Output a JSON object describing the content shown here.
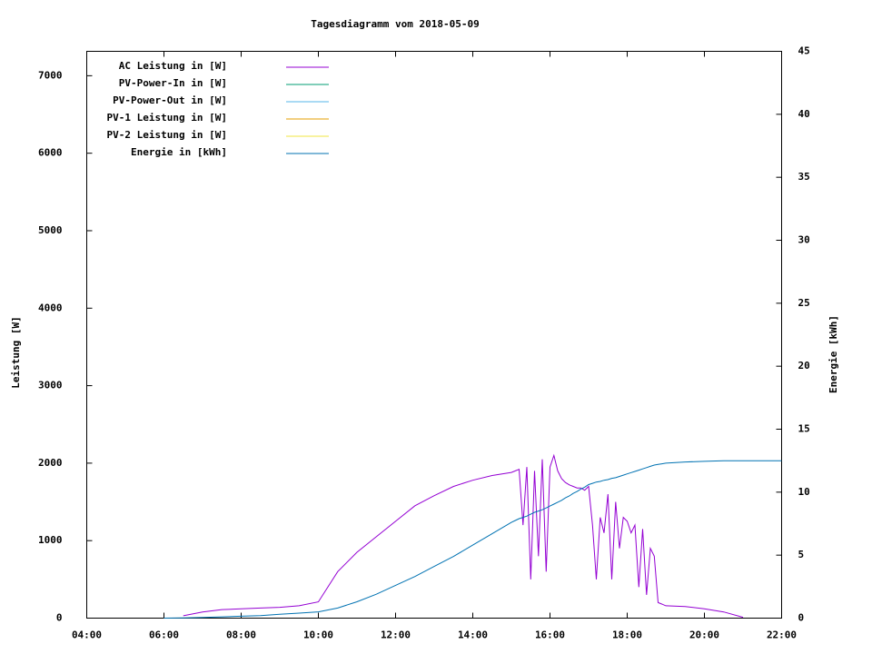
{
  "chart_data": {
    "type": "line",
    "title": "Tagesdiagramm vom 2018-05-09",
    "y_label": "Leistung [W]",
    "y2_label": "Energie [kWh]",
    "legend": "top-left",
    "grid": false,
    "x": [
      6.0,
      6.5,
      7.0,
      7.5,
      8.0,
      8.5,
      9.0,
      9.5,
      10.0,
      10.5,
      11.0,
      11.5,
      12.0,
      12.5,
      13.0,
      13.5,
      14.0,
      14.5,
      15.0,
      15.1,
      15.2,
      15.3,
      15.4,
      15.5,
      15.6,
      15.7,
      15.8,
      15.9,
      16.0,
      16.1,
      16.2,
      16.3,
      16.4,
      16.5,
      16.6,
      16.7,
      16.8,
      16.9,
      17.0,
      17.1,
      17.2,
      17.3,
      17.4,
      17.5,
      17.6,
      17.7,
      17.8,
      17.9,
      18.0,
      18.1,
      18.2,
      18.3,
      18.4,
      18.5,
      18.6,
      18.7,
      18.8,
      18.9,
      19.0,
      19.5,
      20.0,
      20.5,
      21.0,
      21.5,
      22.0
    ],
    "xlim": [
      4,
      22
    ],
    "xticks": [
      {
        "value": 4,
        "label": "04:00"
      },
      {
        "value": 6,
        "label": "06:00"
      },
      {
        "value": 8,
        "label": "08:00"
      },
      {
        "value": 10,
        "label": "10:00"
      },
      {
        "value": 12,
        "label": "12:00"
      },
      {
        "value": 14,
        "label": "14:00"
      },
      {
        "value": 16,
        "label": "16:00"
      },
      {
        "value": 18,
        "label": "18:00"
      },
      {
        "value": 20,
        "label": "20:00"
      },
      {
        "value": 22,
        "label": "22:00"
      }
    ],
    "ylim": [
      0,
      7315
    ],
    "yticks": [
      0,
      1000,
      2000,
      3000,
      4000,
      5000,
      6000,
      7000
    ],
    "y2lim": [
      0,
      45
    ],
    "y2ticks": [
      0,
      5,
      10,
      15,
      20,
      25,
      30,
      35,
      40,
      45
    ],
    "series": [
      {
        "name": "AC Leistung in [W]",
        "color": "#9400d3",
        "values": [
          null,
          30,
          80,
          110,
          120,
          130,
          140,
          160,
          210,
          600,
          850,
          1050,
          1250,
          1450,
          1580,
          1700,
          1780,
          1840,
          1880,
          1900,
          1920,
          1200,
          1950,
          500,
          1900,
          800,
          2050,
          600,
          1950,
          2100,
          1900,
          1800,
          1750,
          1720,
          1700,
          1680,
          1680,
          1650,
          1700,
          1200,
          500,
          1300,
          1100,
          1600,
          500,
          1500,
          900,
          1300,
          1250,
          1100,
          1200,
          400,
          1150,
          300,
          900,
          800,
          200,
          180,
          160,
          150,
          120,
          80,
          10,
          null,
          null
        ]
      },
      {
        "name": "PV-Power-In in [W]",
        "color": "#009e73",
        "values": [
          null,
          null,
          null,
          null,
          null,
          null,
          null,
          null,
          null,
          null,
          null,
          null,
          null,
          null,
          null,
          null,
          null,
          null,
          null,
          null,
          null,
          null,
          null,
          null,
          null,
          null,
          null,
          null,
          null,
          null,
          null,
          null,
          null,
          null,
          null,
          null,
          null,
          null,
          null,
          null,
          null,
          null,
          null,
          null,
          null,
          null,
          null,
          null,
          null,
          null,
          null,
          null,
          null,
          null,
          null,
          null,
          null,
          null,
          null,
          null,
          null,
          null,
          null,
          null,
          null
        ]
      },
      {
        "name": "PV-Power-Out in [W]",
        "color": "#56b4e9",
        "values": [
          null,
          null,
          null,
          null,
          null,
          null,
          null,
          null,
          null,
          null,
          null,
          null,
          null,
          null,
          null,
          null,
          null,
          null,
          null,
          null,
          null,
          null,
          null,
          null,
          null,
          null,
          null,
          null,
          null,
          null,
          null,
          null,
          null,
          null,
          null,
          null,
          null,
          null,
          null,
          null,
          null,
          null,
          null,
          null,
          null,
          null,
          null,
          null,
          null,
          null,
          null,
          null,
          null,
          null,
          null,
          null,
          null,
          null,
          null,
          null,
          null,
          null,
          null,
          null,
          null
        ]
      },
      {
        "name": "PV-1 Leistung in [W]",
        "color": "#e69f00",
        "values": [
          null,
          null,
          null,
          null,
          null,
          null,
          null,
          null,
          null,
          null,
          null,
          null,
          null,
          null,
          null,
          null,
          null,
          null,
          null,
          null,
          null,
          null,
          null,
          null,
          null,
          null,
          null,
          null,
          null,
          null,
          null,
          null,
          null,
          null,
          null,
          null,
          null,
          null,
          null,
          null,
          null,
          null,
          null,
          null,
          null,
          null,
          null,
          null,
          null,
          null,
          null,
          null,
          null,
          null,
          null,
          null,
          null,
          null,
          null,
          null,
          null,
          null,
          null,
          null,
          null
        ]
      },
      {
        "name": "PV-2 Leistung in [W]",
        "color": "#f0e442",
        "values": [
          null,
          null,
          null,
          null,
          null,
          null,
          null,
          null,
          null,
          null,
          null,
          null,
          null,
          null,
          null,
          null,
          null,
          null,
          null,
          null,
          null,
          null,
          null,
          null,
          null,
          null,
          null,
          null,
          null,
          null,
          null,
          null,
          null,
          null,
          null,
          null,
          null,
          null,
          null,
          null,
          null,
          null,
          null,
          null,
          null,
          null,
          null,
          null,
          null,
          null,
          null,
          null,
          null,
          null,
          null,
          null,
          null,
          null,
          null,
          null,
          null,
          null,
          null,
          null,
          null
        ]
      },
      {
        "name": "Energie in [kWh]",
        "color": "#0072b2",
        "axis": "y2",
        "values": [
          0,
          0.02,
          0.05,
          0.1,
          0.15,
          0.2,
          0.3,
          0.4,
          0.5,
          0.8,
          1.3,
          1.9,
          2.6,
          3.3,
          4.1,
          4.9,
          5.8,
          6.7,
          7.6,
          7.75,
          7.9,
          8.0,
          8.1,
          8.25,
          8.4,
          8.5,
          8.6,
          8.75,
          8.9,
          9.05,
          9.2,
          9.35,
          9.55,
          9.7,
          9.9,
          10.05,
          10.25,
          10.4,
          10.6,
          10.7,
          10.8,
          10.85,
          10.95,
          11.0,
          11.1,
          11.15,
          11.25,
          11.35,
          11.45,
          11.55,
          11.65,
          11.75,
          11.85,
          11.95,
          12.05,
          12.15,
          12.2,
          12.25,
          12.3,
          12.4,
          12.45,
          12.5,
          12.5,
          12.5,
          12.5
        ]
      }
    ]
  }
}
